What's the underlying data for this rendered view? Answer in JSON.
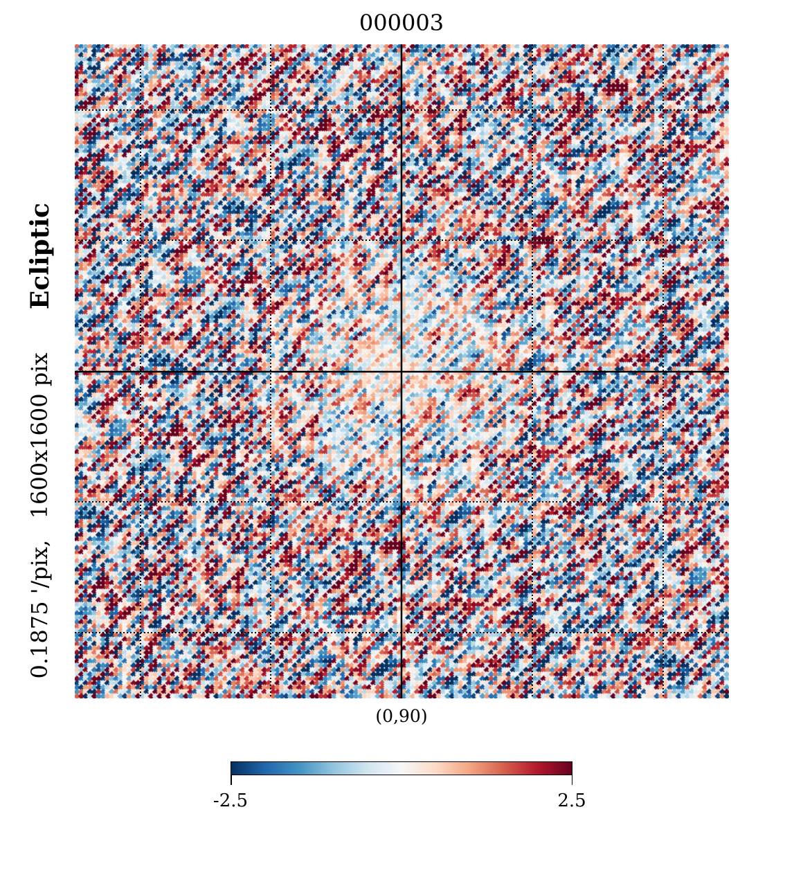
{
  "chart_data": {
    "type": "heatmap",
    "title": "000003",
    "projection_center_label": "(0,90)",
    "coordinate_system": "Ecliptic",
    "resolution_label": "0.1875 '/pix,   1600x1600 pix",
    "colorbar": {
      "min": -2.5,
      "max": 2.5,
      "min_label": "-2.5",
      "max_label": "2.5",
      "colormap": "RdBu_r"
    },
    "grid": true,
    "graticule_style": "dotted",
    "colors": {
      "low": "#08306b",
      "mid": "#f7f7f7",
      "high": "#67001f"
    }
  }
}
